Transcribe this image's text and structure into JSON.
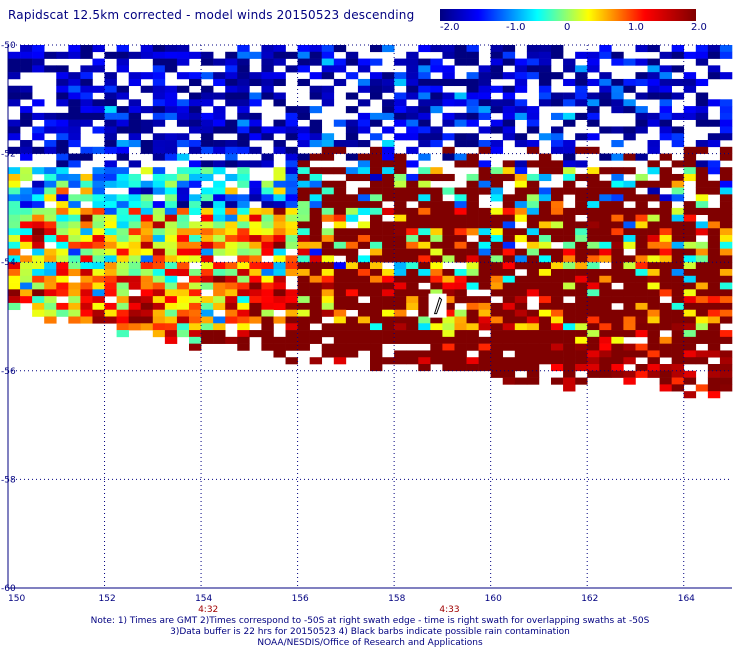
{
  "title": "Rapidscat 12.5km corrected - model winds 20150523 descending",
  "colorbar": {
    "ticks": [
      "-2.0",
      "-1.0",
      "0",
      "1.0",
      "2.0"
    ],
    "range": [
      -2.0,
      2.0
    ],
    "colors": [
      "#000080",
      "#0000ff",
      "#00ffff",
      "#ffff00",
      "#ff0000",
      "#800000"
    ]
  },
  "chart_data": {
    "type": "heatmap",
    "title": "Rapidscat 12.5km corrected - model winds 20150523 descending",
    "xlabel": "",
    "ylabel": "",
    "xlim": [
      150,
      165
    ],
    "ylim": [
      -60,
      -50
    ],
    "x_ticks": [
      "150",
      "152",
      "154",
      "156",
      "158",
      "160",
      "162",
      "164"
    ],
    "y_ticks": [
      "-50",
      "-52",
      "-54",
      "-56",
      "-58",
      "-60"
    ],
    "grid": true,
    "value_range": [
      -2.0,
      2.0
    ],
    "time_labels": [
      {
        "lon": 154,
        "text": "4:32"
      },
      {
        "lon": 159,
        "text": "4:33"
      }
    ],
    "swath_bands": [
      {
        "lat_top": -50.0,
        "lat_bottom": -52.3,
        "mean": -1.7,
        "spread": 0.6,
        "missing": 0.35
      },
      {
        "lat_top": -52.3,
        "lat_bottom": -53.0,
        "mean": -0.6,
        "spread": 0.9,
        "missing": 0.15
      },
      {
        "lat_top": -53.0,
        "lat_bottom": -54.2,
        "mean": 0.4,
        "spread": 1.0,
        "missing": 0.05
      },
      {
        "lat_top": -54.2,
        "lat_bottom": -55.5,
        "mean": 0.9,
        "spread": 1.1,
        "missing": 0.1
      },
      {
        "lat_top": -55.5,
        "lat_bottom": -56.3,
        "mean": 1.8,
        "spread": 0.6,
        "missing": 0.15
      }
    ],
    "swath_edge": [
      {
        "lon": 150.0,
        "lat": -55.0
      },
      {
        "lon": 152.0,
        "lat": -55.3
      },
      {
        "lon": 154.0,
        "lat": -55.6
      },
      {
        "lon": 156.0,
        "lat": -55.8
      },
      {
        "lon": 158.0,
        "lat": -55.9
      },
      {
        "lon": 160.0,
        "lat": -56.1
      },
      {
        "lon": 162.0,
        "lat": -56.3
      },
      {
        "lon": 165.0,
        "lat": -56.5
      }
    ],
    "hot_core": {
      "lon_range": [
        156.0,
        165.0
      ],
      "lat_range": [
        -55.8,
        -51.8
      ],
      "mean": 2.0
    },
    "rain_barb": {
      "lon": 158.9,
      "lat": -54.8
    }
  },
  "notes": [
    "Note: 1) Times are GMT 2)Times correspond to -50S at right swath edge - time is right swath for overlapping swaths at -50S",
    "3)Data buffer is 22 hrs for 20150523 4) Black barbs indicate possible rain contamination",
    "NOAA/NESDIS/Office of Research and Applications"
  ]
}
